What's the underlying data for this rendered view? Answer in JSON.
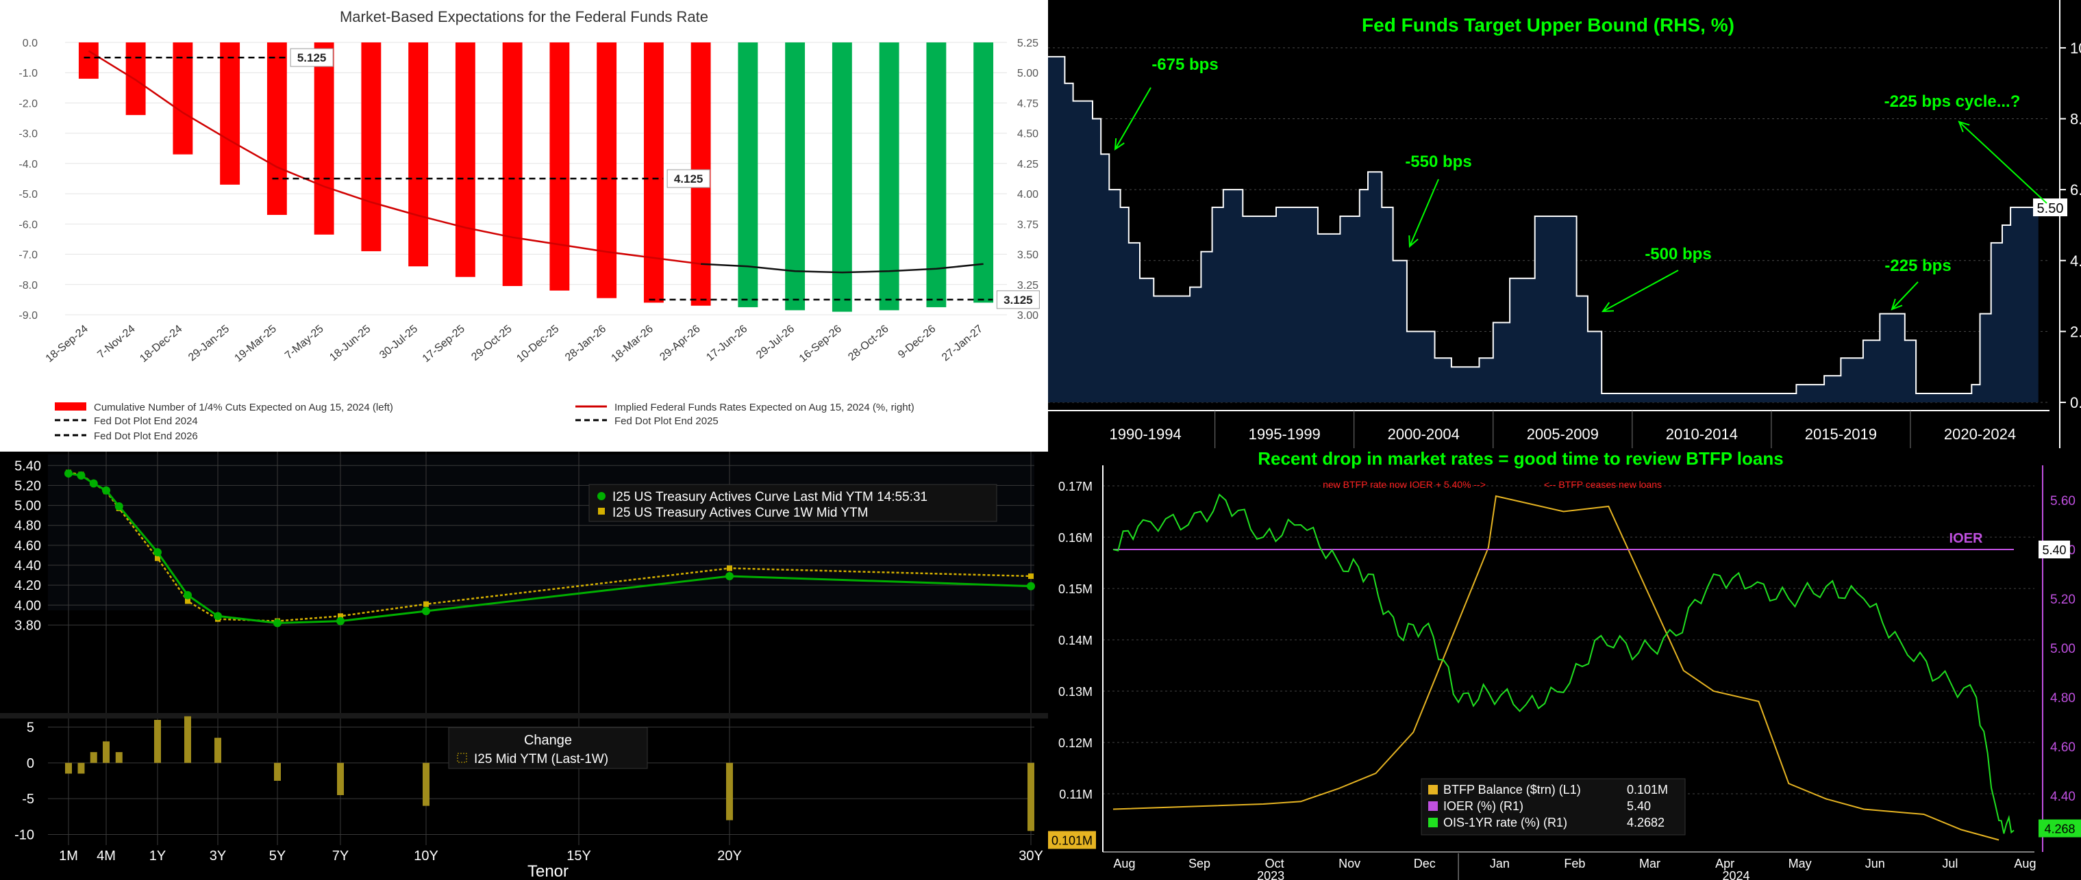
{
  "colors": {
    "red_bars": "#ff0000",
    "green_bars": "#00b050",
    "fed_navy": "#0c1f3a",
    "annotation_green": "#00ff00",
    "btfp_gold": "#e6b422",
    "ioer_purple": "#c050e0",
    "treasury_green": "#00b000",
    "treasury_1w": "#d4b000",
    "change_bar": "#a08c1c"
  },
  "panel1": {
    "title": "Market-Based Expectations for the Federal Funds Rate",
    "chart_data": {
      "type": "bar",
      "categories": [
        "18-Sep-24",
        "7-Nov-24",
        "18-Dec-24",
        "29-Jan-25",
        "19-Mar-25",
        "7-May-25",
        "18-Jun-25",
        "30-Jul-25",
        "17-Sep-25",
        "29-Oct-25",
        "10-Dec-25",
        "28-Jan-26",
        "18-Mar-26",
        "29-Apr-26",
        "17-Jun-26",
        "29-Jul-26",
        "16-Sep-26",
        "28-Oct-26",
        "9-Dec-26",
        "27-Jan-27"
      ],
      "bar_colors": [
        "red",
        "red",
        "red",
        "red",
        "red",
        "red",
        "red",
        "red",
        "red",
        "red",
        "red",
        "red",
        "red",
        "red",
        "green",
        "green",
        "green",
        "green",
        "green",
        "green"
      ],
      "series": [
        {
          "name": "Cumulative Number of 1/4% Cuts Expected on Aug 15, 2024 (left)",
          "axis": "left",
          "values": [
            -1.2,
            -2.4,
            -3.7,
            -4.7,
            -5.7,
            -6.35,
            -6.9,
            -7.4,
            -7.75,
            -8.05,
            -8.2,
            -8.45,
            -8.6,
            -8.7,
            -8.75,
            -8.85,
            -8.9,
            -8.85,
            -8.75,
            -8.6
          ]
        },
        {
          "name": "Implied Federal Funds Rates Expected on Aug 15, 2024 (%, right)",
          "axis": "right",
          "values": [
            5.18,
            4.94,
            4.67,
            4.44,
            4.22,
            4.06,
            3.93,
            3.82,
            3.72,
            3.64,
            3.58,
            3.52,
            3.47,
            3.42,
            3.4,
            3.36,
            3.35,
            3.36,
            3.38,
            3.42
          ]
        }
      ],
      "dot_plot": [
        {
          "name": "Fed Dot Plot End 2024",
          "value": 5.125,
          "label": "5.125",
          "start": 0,
          "end": 4
        },
        {
          "name": "Fed Dot Plot End 2025",
          "value": 4.125,
          "label": "4.125",
          "start": 4,
          "end": 12
        },
        {
          "name": "Fed Dot Plot End 2026",
          "value": 3.125,
          "label": "3.125",
          "start": 12,
          "end": 19
        }
      ],
      "left_axis": {
        "min": -9,
        "max": 0,
        "ticks": [
          "0.0",
          "-1.0",
          "-2.0",
          "-3.0",
          "-4.0",
          "-5.0",
          "-6.0",
          "-7.0",
          "-8.0",
          "-9.0"
        ]
      },
      "right_axis": {
        "min": 3.0,
        "max": 5.25,
        "ticks": [
          "5.25",
          "5.00",
          "4.75",
          "4.50",
          "4.25",
          "4.00",
          "3.75",
          "3.50",
          "3.25",
          "3.00"
        ]
      }
    },
    "legend": [
      {
        "label": "Cumulative Number of 1/4% Cuts Expected on Aug 15, 2024 (left)",
        "style": "red-bar"
      },
      {
        "label": "Implied Federal Funds Rates Expected on Aug 15, 2024 (%, right)",
        "style": "red-line"
      },
      {
        "label": "Fed Dot Plot End 2024",
        "style": "dashed"
      },
      {
        "label": "Fed Dot Plot End 2025",
        "style": "dashed"
      },
      {
        "label": "Fed Dot Plot End 2026",
        "style": "dashed"
      }
    ]
  },
  "panel2": {
    "title": "Fed Funds Target Upper Bound (RHS, %)",
    "chart_data": {
      "type": "area",
      "x_range": [
        1989,
        2025
      ],
      "ylim": [
        0,
        10.5
      ],
      "y_ticks": [
        "10.00",
        "8.00",
        "6.00",
        "4.00",
        "2.00",
        "0.00"
      ],
      "x_labels": [
        "1990-1994",
        "1995-1999",
        "2000-2004",
        "2005-2009",
        "2010-2014",
        "2015-2019",
        "2020-2024"
      ],
      "last_value_label": "5.50",
      "points": [
        [
          1989.0,
          9.75
        ],
        [
          1989.3,
          9.75
        ],
        [
          1989.6,
          9.0
        ],
        [
          1989.9,
          8.5
        ],
        [
          1990.6,
          8.0
        ],
        [
          1990.9,
          7.0
        ],
        [
          1991.2,
          6.0
        ],
        [
          1991.6,
          5.5
        ],
        [
          1991.9,
          4.5
        ],
        [
          1992.3,
          3.5
        ],
        [
          1992.8,
          3.0
        ],
        [
          1994.1,
          3.25
        ],
        [
          1994.5,
          4.25
        ],
        [
          1994.9,
          5.5
        ],
        [
          1995.3,
          6.0
        ],
        [
          1996.0,
          5.25
        ],
        [
          1997.2,
          5.5
        ],
        [
          1998.7,
          4.75
        ],
        [
          1999.5,
          5.25
        ],
        [
          2000.2,
          6.0
        ],
        [
          2000.5,
          6.5
        ],
        [
          2001.0,
          5.5
        ],
        [
          2001.4,
          4.0
        ],
        [
          2001.9,
          2.0
        ],
        [
          2002.9,
          1.25
        ],
        [
          2003.5,
          1.0
        ],
        [
          2004.5,
          1.25
        ],
        [
          2005.0,
          2.25
        ],
        [
          2005.6,
          3.5
        ],
        [
          2006.5,
          5.25
        ],
        [
          2007.6,
          5.25
        ],
        [
          2008.0,
          3.0
        ],
        [
          2008.4,
          2.0
        ],
        [
          2008.9,
          0.25
        ],
        [
          2015.9,
          0.5
        ],
        [
          2016.9,
          0.75
        ],
        [
          2017.5,
          1.25
        ],
        [
          2018.3,
          1.75
        ],
        [
          2018.9,
          2.5
        ],
        [
          2019.4,
          2.5
        ],
        [
          2019.8,
          1.75
        ],
        [
          2020.2,
          0.25
        ],
        [
          2022.2,
          0.5
        ],
        [
          2022.5,
          2.5
        ],
        [
          2022.9,
          4.5
        ],
        [
          2023.3,
          5.0
        ],
        [
          2023.6,
          5.5
        ],
        [
          2024.6,
          5.5
        ]
      ],
      "annotations": [
        {
          "text": "-675 bps"
        },
        {
          "text": "-550 bps"
        },
        {
          "text": "-500 bps"
        },
        {
          "text": "-225 bps"
        },
        {
          "text": "-225 bps cycle...?"
        }
      ]
    }
  },
  "panel3": {
    "chart_data": {
      "type": "line",
      "x": [
        "1M",
        "2M",
        "3M",
        "4M",
        "6M",
        "1Y",
        "2Y",
        "3Y",
        "5Y",
        "7Y",
        "10Y",
        "20Y",
        "30Y"
      ],
      "x_years": [
        0.083,
        0.167,
        0.25,
        0.333,
        0.5,
        1,
        2,
        3,
        5,
        7,
        10,
        20,
        30
      ],
      "series": [
        {
          "name": "I25 US Treasury Actives Curve Last Mid YTM 14:55:31",
          "values": [
            5.32,
            5.3,
            5.22,
            5.15,
            4.99,
            4.53,
            4.1,
            3.89,
            3.82,
            3.84,
            3.94,
            4.29,
            4.19
          ]
        },
        {
          "name": "I25 US Treasury Actives Curve 1W Mid YTM",
          "values": [
            5.33,
            5.31,
            5.22,
            5.14,
            4.97,
            4.47,
            4.04,
            3.86,
            3.84,
            3.89,
            4.01,
            4.37,
            4.29
          ]
        }
      ],
      "ylim": [
        3.7,
        5.45
      ],
      "y_ticks": [
        "5.40",
        "5.20",
        "5.00",
        "4.80",
        "4.60",
        "4.40",
        "4.20",
        "4.00",
        "3.80"
      ],
      "x_ticks": [
        "1M",
        "4M",
        "1Y",
        "3Y",
        "5Y",
        "7Y",
        "10Y",
        "15Y",
        "20Y",
        "30Y"
      ],
      "x_tick_years": [
        0.083,
        0.333,
        1,
        3,
        5,
        7,
        10,
        15,
        20,
        30
      ],
      "xlabel": "Tenor",
      "change": {
        "name": "I25 Mid YTM (Last-1W)",
        "title": "Change",
        "values": [
          -1.5,
          -1.5,
          1.5,
          3,
          1.5,
          6,
          6.5,
          3.5,
          -2.5,
          -4.5,
          -6,
          -8,
          -9.5
        ],
        "ylim": [
          -11,
          6
        ],
        "y_ticks": [
          "5",
          "0",
          "-5",
          "-10"
        ]
      }
    }
  },
  "panel4": {
    "title": "Recent drop in market rates = good time to review BTFP loans",
    "note_left": "new BTFP rate now IOER + 5.40% -->",
    "note_right": "<-- BTFP ceases new loans",
    "ioer_label": "IOER",
    "chart_data": {
      "type": "line",
      "left_axis": {
        "min": 0.1,
        "max": 0.172,
        "ticks": [
          "0.17M",
          "0.16M",
          "0.15M",
          "0.14M",
          "0.13M",
          "0.12M",
          "0.11M"
        ]
      },
      "right_axis": {
        "min": 4.2,
        "max": 5.7,
        "ticks": [
          "5.60",
          "5.40",
          "5.20",
          "5.00",
          "4.80",
          "4.60",
          "4.40"
        ]
      },
      "x_months": [
        "Aug",
        "Sep",
        "Oct",
        "Nov",
        "Dec",
        "Jan",
        "Feb",
        "Mar",
        "Apr",
        "May",
        "Jun",
        "Jul",
        "Aug"
      ],
      "x_years": [
        "2023",
        "2024"
      ],
      "series": [
        {
          "name": "BTFP Balance ($trn) (L1)",
          "last": "0.101M",
          "axis": "left",
          "points": [
            [
              0,
              0.107
            ],
            [
              1,
              0.1075
            ],
            [
              2,
              0.108
            ],
            [
              2.5,
              0.1085
            ],
            [
              3,
              0.111
            ],
            [
              3.5,
              0.114
            ],
            [
              4,
              0.122
            ],
            [
              4.5,
              0.14
            ],
            [
              5,
              0.158
            ],
            [
              5.1,
              0.168
            ],
            [
              6,
              0.165
            ],
            [
              6.6,
              0.166
            ],
            [
              7.6,
              0.134
            ],
            [
              8,
              0.13
            ],
            [
              8.6,
              0.128
            ],
            [
              9,
              0.112
            ],
            [
              9.5,
              0.109
            ],
            [
              10,
              0.107
            ],
            [
              10.8,
              0.106
            ],
            [
              11.3,
              0.103
            ],
            [
              11.8,
              0.101
            ]
          ]
        },
        {
          "name": "IOER (%) (R1)",
          "last": "5.40",
          "axis": "right",
          "points": [
            [
              0,
              5.4
            ],
            [
              12,
              5.4
            ]
          ]
        },
        {
          "name": "OIS-1YR rate (%) (R1)",
          "last": "4.2682",
          "axis": "right",
          "points": [
            [
              0,
              5.4
            ],
            [
              0.4,
              5.52
            ],
            [
              1,
              5.5
            ],
            [
              1.5,
              5.6
            ],
            [
              2,
              5.45
            ],
            [
              2.5,
              5.5
            ],
            [
              3,
              5.35
            ],
            [
              3.4,
              5.3
            ],
            [
              3.8,
              5.05
            ],
            [
              4.2,
              5.1
            ],
            [
              4.6,
              4.78
            ],
            [
              5,
              4.82
            ],
            [
              5.5,
              4.77
            ],
            [
              6,
              4.82
            ],
            [
              6.5,
              5.05
            ],
            [
              7,
              4.98
            ],
            [
              7.5,
              5.05
            ],
            [
              8,
              5.3
            ],
            [
              8.5,
              5.25
            ],
            [
              9,
              5.2
            ],
            [
              9.5,
              5.25
            ],
            [
              10,
              5.2
            ],
            [
              10.5,
              5.02
            ],
            [
              11,
              4.88
            ],
            [
              11.5,
              4.8
            ],
            [
              11.8,
              4.3
            ],
            [
              12,
              4.26
            ]
          ]
        }
      ],
      "right_last_label": "4.268"
    },
    "legend": [
      {
        "label": "BTFP Balance ($trn) (L1)",
        "value": "0.101M"
      },
      {
        "label": "IOER (%) (R1)",
        "value": "5.40"
      },
      {
        "label": "OIS-1YR rate (%) (R1)",
        "value": "4.2682"
      }
    ]
  }
}
